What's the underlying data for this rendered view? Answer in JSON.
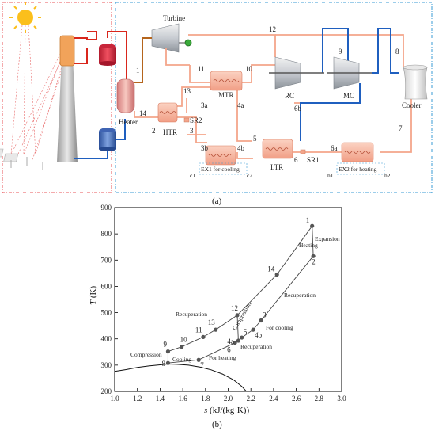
{
  "panel_a": {
    "caption": "(a)",
    "components": {
      "turbine": "Turbine",
      "heater": "Heater",
      "htr": "HTR",
      "mtr": "MTR",
      "ltr": "LTR",
      "rc": "RC",
      "mc": "MC",
      "cooler": "Cooler",
      "sr1": "SR1",
      "sr2": "SR2",
      "ex1": "EX1  for cooling",
      "ex2": "EX2  for heating",
      "c1": "c1",
      "c2": "c2",
      "h1": "h1",
      "h2": "h2"
    },
    "state_points": [
      {
        "id": "p1",
        "text": "1"
      },
      {
        "id": "p2",
        "text": "2"
      },
      {
        "id": "p3",
        "text": "3"
      },
      {
        "id": "p3a",
        "text": "3a"
      },
      {
        "id": "p3b",
        "text": "3b"
      },
      {
        "id": "p4a",
        "text": "4a"
      },
      {
        "id": "p4b",
        "text": "4b"
      },
      {
        "id": "p5",
        "text": "5"
      },
      {
        "id": "p6",
        "text": "6"
      },
      {
        "id": "p6a",
        "text": "6a"
      },
      {
        "id": "p6b",
        "text": "6b"
      },
      {
        "id": "p7",
        "text": "7"
      },
      {
        "id": "p8",
        "text": "8"
      },
      {
        "id": "p9",
        "text": "9"
      },
      {
        "id": "p10",
        "text": "10"
      },
      {
        "id": "p11",
        "text": "11"
      },
      {
        "id": "p12",
        "text": "12"
      },
      {
        "id": "p13",
        "text": "13"
      },
      {
        "id": "p14",
        "text": "14"
      }
    ],
    "colors": {
      "solar_border": "#e8545a",
      "cycle_border": "#3a9bd6",
      "co2_line": "#f4a58a",
      "hot_line": "#d9261c",
      "turbine_line": "#b5651d",
      "cold_line": "#1f5fbf"
    }
  },
  "panel_b": {
    "caption": "(b)",
    "chart_data": {
      "type": "line",
      "xlabel_main": "s",
      "xlabel_unit": " (kJ/(kg·K))",
      "ylabel_main": "T",
      "ylabel_unit": " (K)",
      "xlim": [
        1.0,
        3.0
      ],
      "ylim": [
        200,
        900
      ],
      "xticks": [
        "1.0",
        "1.2",
        "1.4",
        "1.6",
        "1.8",
        "2.0",
        "2.2",
        "2.4",
        "2.6",
        "2.8",
        "3.0"
      ],
      "yticks": [
        "200",
        "300",
        "400",
        "500",
        "600",
        "700",
        "800",
        "900"
      ],
      "points": [
        {
          "label": "1",
          "s": 2.74,
          "T": 830
        },
        {
          "label": "2",
          "s": 2.75,
          "T": 715
        },
        {
          "label": "3",
          "s": 2.29,
          "T": 470
        },
        {
          "label": "4b",
          "s": 2.22,
          "T": 435
        },
        {
          "label": "5",
          "s": 2.12,
          "T": 405
        },
        {
          "label": "6",
          "s": 2.06,
          "T": 385
        },
        {
          "label": "7",
          "s": 1.74,
          "T": 320
        },
        {
          "label": "8",
          "s": 1.47,
          "T": 308
        },
        {
          "label": "9",
          "s": 1.47,
          "T": 352
        },
        {
          "label": "10",
          "s": 1.59,
          "T": 370
        },
        {
          "label": "11",
          "s": 1.78,
          "T": 407
        },
        {
          "label": "12",
          "s": 2.08,
          "T": 490
        },
        {
          "label": "13",
          "s": 1.89,
          "T": 435
        },
        {
          "label": "14",
          "s": 2.43,
          "T": 645
        },
        {
          "label": "4a",
          "s": 2.09,
          "T": 393
        }
      ],
      "annotations": [
        "Heating",
        "Expansion",
        "Recuperation",
        "For cooling",
        "Compression",
        "Recuperation",
        "For heating",
        "Cooling",
        "Compression",
        "Recuperation"
      ]
    }
  }
}
